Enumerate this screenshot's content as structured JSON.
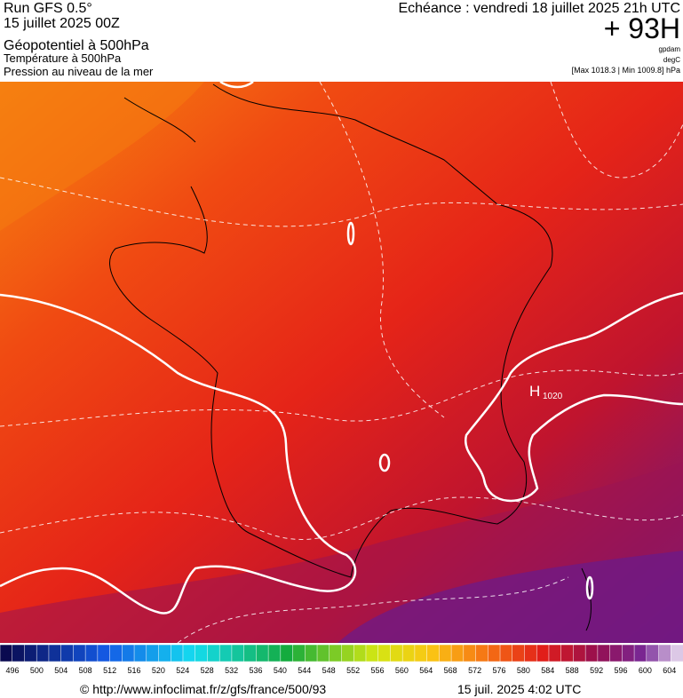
{
  "header": {
    "left": [
      "Run GFS 0.5°",
      "15 juillet 2025 00Z",
      "Géopotentiel à 500hPa",
      "Température à 500hPa",
      "Pression au niveau de la mer"
    ],
    "right": {
      "valid": "Echéance : vendredi 18 juillet 2025 21h UTC",
      "lead": "+ 93H",
      "units": [
        "gpdam",
        "degC"
      ],
      "range": "[Max 1018.3 | Min 1009.8] hPa"
    }
  },
  "map": {
    "high": {
      "letter": "H",
      "pressure": "1020"
    }
  },
  "colorbar": {
    "labels": [
      496,
      500,
      504,
      508,
      512,
      516,
      520,
      524,
      528,
      532,
      536,
      540,
      544,
      548,
      552,
      556,
      560,
      564,
      568,
      572,
      576,
      580,
      584,
      588,
      592,
      596,
      600,
      604
    ]
  },
  "footer": {
    "source": "© http://www.infoclimat.fr/z/gfs/france/500/93",
    "time": "15 juil. 2025  4:02 UTC"
  }
}
